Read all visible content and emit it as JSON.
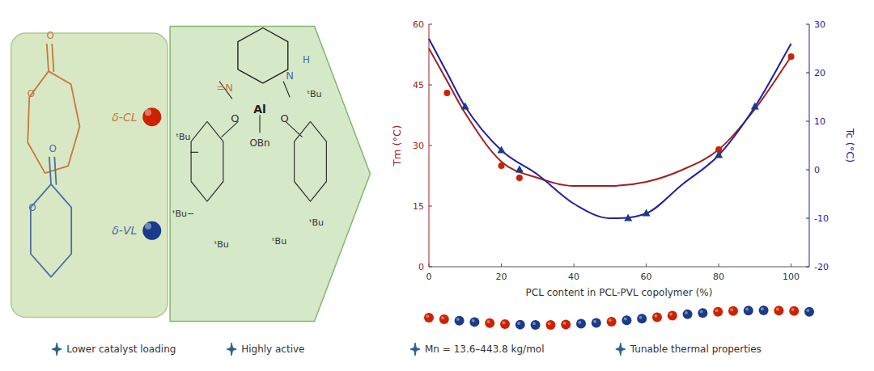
{
  "chart_data": {
    "type": "line",
    "xlabel": "PCL content in PCL-PVL copolymer (%)",
    "ylabel": "Tm (°C)",
    "y2label": "Tc (°C)",
    "xlim": [
      0,
      105
    ],
    "ylim": [
      0,
      60
    ],
    "y2lim": [
      -20,
      30
    ],
    "xticks": [
      0,
      20,
      40,
      60,
      80,
      100
    ],
    "yticks": [
      0,
      15,
      30,
      45,
      60
    ],
    "y2ticks": [
      -20,
      -10,
      0,
      10,
      20,
      30
    ],
    "grid": false,
    "series": [
      {
        "type": "line",
        "line_style": "solid",
        "marker": "none",
        "color": "#a02020",
        "x": [
          0,
          5,
          10,
          20,
          30,
          40,
          50,
          60,
          70,
          80,
          90,
          100
        ],
        "values": [
          54,
          46,
          38,
          26,
          22,
          20,
          20,
          21,
          24,
          29,
          39,
          52
        ]
      },
      {
        "type": "line",
        "axis": "y2",
        "line_style": "solid",
        "marker": "none",
        "color": "#2020a0",
        "x": [
          0,
          5,
          10,
          20,
          30,
          40,
          50,
          60,
          70,
          80,
          90,
          100
        ],
        "values": [
          27,
          20,
          13,
          4,
          -1,
          -7,
          -10,
          -9,
          -3,
          3,
          13,
          26
        ]
      },
      {
        "type": "scatter",
        "marker": "circle",
        "color": "#cc2200",
        "x": [
          5,
          20,
          25,
          80,
          100
        ],
        "values": [
          43,
          25,
          22,
          29,
          52
        ]
      },
      {
        "type": "scatter",
        "axis": "y2",
        "marker": "triangle",
        "color": "#1a3a8a",
        "x": [
          10,
          20,
          25,
          55,
          60,
          80,
          90
        ],
        "values": [
          13,
          4,
          0,
          -10,
          -9,
          3,
          13
        ]
      }
    ],
    "annotations": [
      {
        "text": "δ-CL",
        "color": "#c8783c"
      },
      {
        "text": "δ-VL",
        "color": "#4a6fa5"
      },
      {
        "text": "O",
        "color": "#c8783c"
      },
      {
        "text": "O",
        "color": "#c8783c"
      },
      {
        "text": "O",
        "color": "#4a6fa5"
      },
      {
        "text": "O",
        "color": "#4a6fa5"
      },
      {
        "text": "=N",
        "color": "#c8783c"
      },
      {
        "text": "N",
        "color": "#4a6fa5"
      },
      {
        "text": "H",
        "color": "#4a6fa5"
      },
      {
        "text": "Al",
        "color": "#222222"
      },
      {
        "text": "O",
        "color": "#333333"
      },
      {
        "text": "O",
        "color": "#333333"
      },
      {
        "text": "OBn",
        "color": "#333333"
      },
      {
        "text": "ᵗBu",
        "color": "#333333"
      },
      {
        "text": "ᵗBu−",
        "color": "#333333"
      },
      {
        "text": "ᵗBu",
        "color": "#333333"
      },
      {
        "text": "ᵗBu",
        "color": "#333333"
      },
      {
        "text": "ᵗBu",
        "color": "#333333"
      },
      {
        "text": "ᵗBu",
        "color": "#333333"
      },
      {
        "text": "Lower catalyst loading",
        "color": "#333333"
      },
      {
        "text": "Highly active",
        "color": "#333333"
      },
      {
        "text": "Mn = 13.6–443.8 kg/mol",
        "color": "#333333"
      },
      {
        "text": "Tunable thermal properties",
        "color": "#333333"
      }
    ]
  }
}
